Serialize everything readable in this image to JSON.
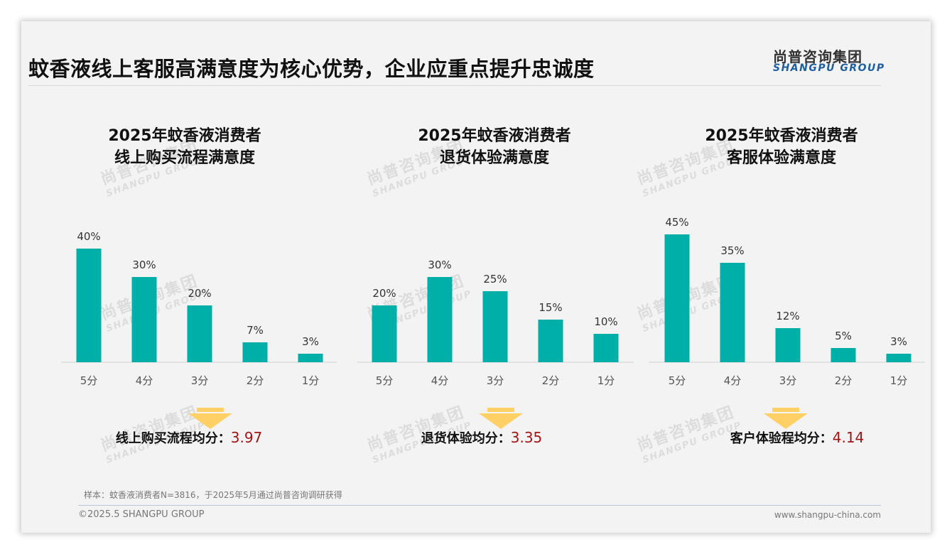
{
  "title": "蚊香液线上客服高满意度为核心优势，企业应重点提升忠诚度",
  "logo": {
    "cn": "尚普咨询集团",
    "en": "SHANGPU GROUP"
  },
  "watermark": {
    "cn": "尚普咨询集团",
    "en": "SHANGPU GROUP"
  },
  "colors": {
    "bar": "#00b0a8",
    "arrow": "#ffd066",
    "avg_value": "#a31515",
    "accent": "#1f5f9e"
  },
  "chart_data": [
    {
      "type": "bar",
      "title_line1": "2025年蚊香液消费者",
      "title_line2": "线上购买流程满意度",
      "categories": [
        "5分",
        "4分",
        "3分",
        "2分",
        "1分"
      ],
      "values": [
        40,
        30,
        20,
        7,
        3
      ],
      "value_labels": [
        "40%",
        "30%",
        "20%",
        "7%",
        "3%"
      ],
      "avg_label": "线上购买流程均分：",
      "avg_value": "3.97"
    },
    {
      "type": "bar",
      "title_line1": "2025年蚊香液消费者",
      "title_line2": "退货体验满意度",
      "categories": [
        "5分",
        "4分",
        "3分",
        "2分",
        "1分"
      ],
      "values": [
        20,
        30,
        25,
        15,
        10
      ],
      "value_labels": [
        "20%",
        "30%",
        "25%",
        "15%",
        "10%"
      ],
      "avg_label": "退货体验均分：",
      "avg_value": "3.35"
    },
    {
      "type": "bar",
      "title_line1": "2025年蚊香液消费者",
      "title_line2": "客服体验满意度",
      "categories": [
        "5分",
        "4分",
        "3分",
        "2分",
        "1分"
      ],
      "values": [
        45,
        35,
        12,
        5,
        3
      ],
      "value_labels": [
        "45%",
        "35%",
        "12%",
        "5%",
        "3%"
      ],
      "avg_label": "客户体验程均分：",
      "avg_value": "4.14"
    }
  ],
  "note": "样本：蚊香液消费者N=3816，于2025年5月通过尚普咨询调研获得",
  "footer": {
    "copyright": "©2025.5 SHANGPU GROUP",
    "website": "www.shangpu-china.com"
  }
}
